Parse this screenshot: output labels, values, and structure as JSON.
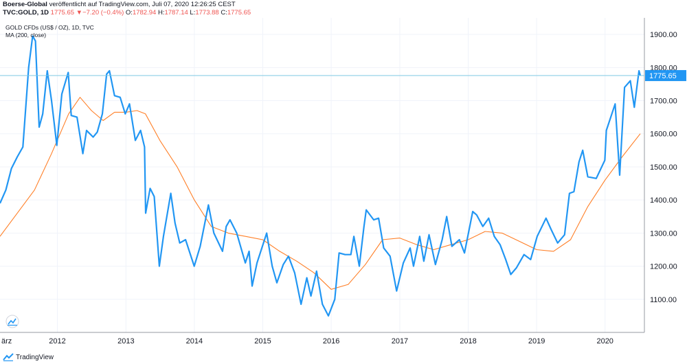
{
  "header": {
    "publisher": "Boerse-Global",
    "published_text": "veröffentlicht auf TradingView.com, Juli 07, 2020 12:26:25 CEST",
    "symbol": "TVC:GOLD, 1D",
    "last": "1775.65",
    "change": "−7.20 (−0.4%)",
    "open_label": "O:",
    "open": "1782.94",
    "high_label": "H:",
    "high": "1787.14",
    "low_label": "L:",
    "low": "1773.88",
    "close_label": "C:",
    "close": "1775.65",
    "colors": {
      "negative": "#ef5350",
      "text": "#131722"
    }
  },
  "legend": {
    "instrument": "GOLD CFDs (US$ / OZ), 1D, TVC",
    "indicator": "MA (200, close)"
  },
  "footer": {
    "brand": "TradingView",
    "logo_icon": "tradingview-logo-icon"
  },
  "chart_data": {
    "type": "line",
    "ylim": [
      1000,
      1950
    ],
    "x_range": [
      "2011-03-01",
      "2020-07-07"
    ],
    "x_ticks": [
      {
        "label": "ärz",
        "date": "2011-03-01"
      },
      {
        "label": "2012",
        "date": "2012-01-01"
      },
      {
        "label": "2013",
        "date": "2013-01-01"
      },
      {
        "label": "2014",
        "date": "2014-01-01"
      },
      {
        "label": "2015",
        "date": "2015-01-01"
      },
      {
        "label": "2016",
        "date": "2016-01-01"
      },
      {
        "label": "2017",
        "date": "2017-01-01"
      },
      {
        "label": "2018",
        "date": "2018-01-01"
      },
      {
        "label": "2019",
        "date": "2019-01-01"
      },
      {
        "label": "2020",
        "date": "2020-01-01"
      }
    ],
    "y_ticks": [
      {
        "label": "1100.00",
        "value": 1100
      },
      {
        "label": "1200.00",
        "value": 1200
      },
      {
        "label": "1300.00",
        "value": 1300
      },
      {
        "label": "1400.00",
        "value": 1400
      },
      {
        "label": "1500.00",
        "value": 1500
      },
      {
        "label": "1600.00",
        "value": 1600
      },
      {
        "label": "1700.00",
        "value": 1700
      },
      {
        "label": "1800.00",
        "value": 1800
      },
      {
        "label": "1900.00",
        "value": 1900
      }
    ],
    "last_price": {
      "value": 1775.65,
      "label": "1775.65"
    },
    "grid": true,
    "series": [
      {
        "color": "#2196f3",
        "points": [
          [
            "2011-03-01",
            1390
          ],
          [
            "2011-04-01",
            1430
          ],
          [
            "2011-05-01",
            1495
          ],
          [
            "2011-06-01",
            1530
          ],
          [
            "2011-07-01",
            1560
          ],
          [
            "2011-08-01",
            1800
          ],
          [
            "2011-08-22",
            1895
          ],
          [
            "2011-09-06",
            1880
          ],
          [
            "2011-09-26",
            1620
          ],
          [
            "2011-10-15",
            1660
          ],
          [
            "2011-11-08",
            1790
          ],
          [
            "2011-12-01",
            1700
          ],
          [
            "2011-12-29",
            1565
          ],
          [
            "2012-01-25",
            1720
          ],
          [
            "2012-02-28",
            1785
          ],
          [
            "2012-03-15",
            1655
          ],
          [
            "2012-04-15",
            1650
          ],
          [
            "2012-05-16",
            1540
          ],
          [
            "2012-06-05",
            1610
          ],
          [
            "2012-07-10",
            1590
          ],
          [
            "2012-08-01",
            1605
          ],
          [
            "2012-08-28",
            1660
          ],
          [
            "2012-09-20",
            1780
          ],
          [
            "2012-10-05",
            1790
          ],
          [
            "2012-11-01",
            1715
          ],
          [
            "2012-12-01",
            1710
          ],
          [
            "2012-12-28",
            1660
          ],
          [
            "2013-01-20",
            1690
          ],
          [
            "2013-02-20",
            1580
          ],
          [
            "2013-03-20",
            1610
          ],
          [
            "2013-04-10",
            1560
          ],
          [
            "2013-04-16",
            1360
          ],
          [
            "2013-05-10",
            1435
          ],
          [
            "2013-06-01",
            1410
          ],
          [
            "2013-06-28",
            1200
          ],
          [
            "2013-07-20",
            1290
          ],
          [
            "2013-08-28",
            1420
          ],
          [
            "2013-09-20",
            1330
          ],
          [
            "2013-10-15",
            1270
          ],
          [
            "2013-11-15",
            1280
          ],
          [
            "2013-12-31",
            1200
          ],
          [
            "2014-02-01",
            1260
          ],
          [
            "2014-03-17",
            1385
          ],
          [
            "2014-04-15",
            1300
          ],
          [
            "2014-05-31",
            1245
          ],
          [
            "2014-06-20",
            1320
          ],
          [
            "2014-07-10",
            1340
          ],
          [
            "2014-08-15",
            1300
          ],
          [
            "2014-09-30",
            1210
          ],
          [
            "2014-10-20",
            1245
          ],
          [
            "2014-11-05",
            1140
          ],
          [
            "2014-12-01",
            1210
          ],
          [
            "2015-01-22",
            1300
          ],
          [
            "2015-02-20",
            1200
          ],
          [
            "2015-03-17",
            1150
          ],
          [
            "2015-04-20",
            1205
          ],
          [
            "2015-05-18",
            1230
          ],
          [
            "2015-06-20",
            1180
          ],
          [
            "2015-07-24",
            1085
          ],
          [
            "2015-08-24",
            1165
          ],
          [
            "2015-09-15",
            1110
          ],
          [
            "2015-10-15",
            1185
          ],
          [
            "2015-11-15",
            1085
          ],
          [
            "2015-12-17",
            1050
          ],
          [
            "2016-01-20",
            1100
          ],
          [
            "2016-02-12",
            1240
          ],
          [
            "2016-03-15",
            1235
          ],
          [
            "2016-04-15",
            1235
          ],
          [
            "2016-05-01",
            1290
          ],
          [
            "2016-05-30",
            1200
          ],
          [
            "2016-06-24",
            1320
          ],
          [
            "2016-07-06",
            1370
          ],
          [
            "2016-08-15",
            1340
          ],
          [
            "2016-09-10",
            1345
          ],
          [
            "2016-10-07",
            1255
          ],
          [
            "2016-11-10",
            1230
          ],
          [
            "2016-12-15",
            1125
          ],
          [
            "2017-01-20",
            1210
          ],
          [
            "2017-02-25",
            1255
          ],
          [
            "2017-03-15",
            1200
          ],
          [
            "2017-04-17",
            1290
          ],
          [
            "2017-05-09",
            1215
          ],
          [
            "2017-06-06",
            1295
          ],
          [
            "2017-07-10",
            1205
          ],
          [
            "2017-08-15",
            1280
          ],
          [
            "2017-09-08",
            1350
          ],
          [
            "2017-10-06",
            1260
          ],
          [
            "2017-11-15",
            1280
          ],
          [
            "2017-12-12",
            1240
          ],
          [
            "2018-01-25",
            1365
          ],
          [
            "2018-02-15",
            1355
          ],
          [
            "2018-03-20",
            1320
          ],
          [
            "2018-04-20",
            1345
          ],
          [
            "2018-05-20",
            1290
          ],
          [
            "2018-06-20",
            1265
          ],
          [
            "2018-07-20",
            1220
          ],
          [
            "2018-08-16",
            1175
          ],
          [
            "2018-09-15",
            1195
          ],
          [
            "2018-10-26",
            1235
          ],
          [
            "2018-11-30",
            1220
          ],
          [
            "2019-01-04",
            1290
          ],
          [
            "2019-02-20",
            1345
          ],
          [
            "2019-03-20",
            1310
          ],
          [
            "2019-04-23",
            1270
          ],
          [
            "2019-05-30",
            1295
          ],
          [
            "2019-06-25",
            1420
          ],
          [
            "2019-07-19",
            1425
          ],
          [
            "2019-08-15",
            1515
          ],
          [
            "2019-09-04",
            1550
          ],
          [
            "2019-10-01",
            1470
          ],
          [
            "2019-11-15",
            1465
          ],
          [
            "2019-12-31",
            1520
          ],
          [
            "2020-01-08",
            1610
          ],
          [
            "2020-02-24",
            1690
          ],
          [
            "2020-03-19",
            1475
          ],
          [
            "2020-04-14",
            1740
          ],
          [
            "2020-05-15",
            1760
          ],
          [
            "2020-06-05",
            1680
          ],
          [
            "2020-06-30",
            1790
          ],
          [
            "2020-07-07",
            1775.65
          ]
        ]
      },
      {
        "name": "MA (200, close)",
        "color": "#ff7f27",
        "points": [
          [
            "2011-03-01",
            1290
          ],
          [
            "2011-06-01",
            1360
          ],
          [
            "2011-09-01",
            1430
          ],
          [
            "2011-12-01",
            1540
          ],
          [
            "2012-03-01",
            1660
          ],
          [
            "2012-05-01",
            1710
          ],
          [
            "2012-07-01",
            1670
          ],
          [
            "2012-09-01",
            1640
          ],
          [
            "2012-11-01",
            1665
          ],
          [
            "2013-01-01",
            1665
          ],
          [
            "2013-03-01",
            1670
          ],
          [
            "2013-04-15",
            1660
          ],
          [
            "2013-07-01",
            1580
          ],
          [
            "2013-10-01",
            1500
          ],
          [
            "2014-01-01",
            1400
          ],
          [
            "2014-04-01",
            1320
          ],
          [
            "2014-07-01",
            1300
          ],
          [
            "2014-10-01",
            1290
          ],
          [
            "2015-01-01",
            1280
          ],
          [
            "2015-04-01",
            1245
          ],
          [
            "2015-07-01",
            1215
          ],
          [
            "2015-10-01",
            1180
          ],
          [
            "2016-01-01",
            1130
          ],
          [
            "2016-04-01",
            1145
          ],
          [
            "2016-07-01",
            1205
          ],
          [
            "2016-10-01",
            1280
          ],
          [
            "2017-01-01",
            1285
          ],
          [
            "2017-04-01",
            1265
          ],
          [
            "2017-07-01",
            1250
          ],
          [
            "2017-10-01",
            1265
          ],
          [
            "2018-01-01",
            1280
          ],
          [
            "2018-04-01",
            1305
          ],
          [
            "2018-07-01",
            1300
          ],
          [
            "2018-10-01",
            1275
          ],
          [
            "2019-01-01",
            1250
          ],
          [
            "2019-04-01",
            1245
          ],
          [
            "2019-07-01",
            1280
          ],
          [
            "2019-10-01",
            1380
          ],
          [
            "2020-01-01",
            1460
          ],
          [
            "2020-04-01",
            1530
          ],
          [
            "2020-07-07",
            1600
          ]
        ]
      }
    ]
  }
}
